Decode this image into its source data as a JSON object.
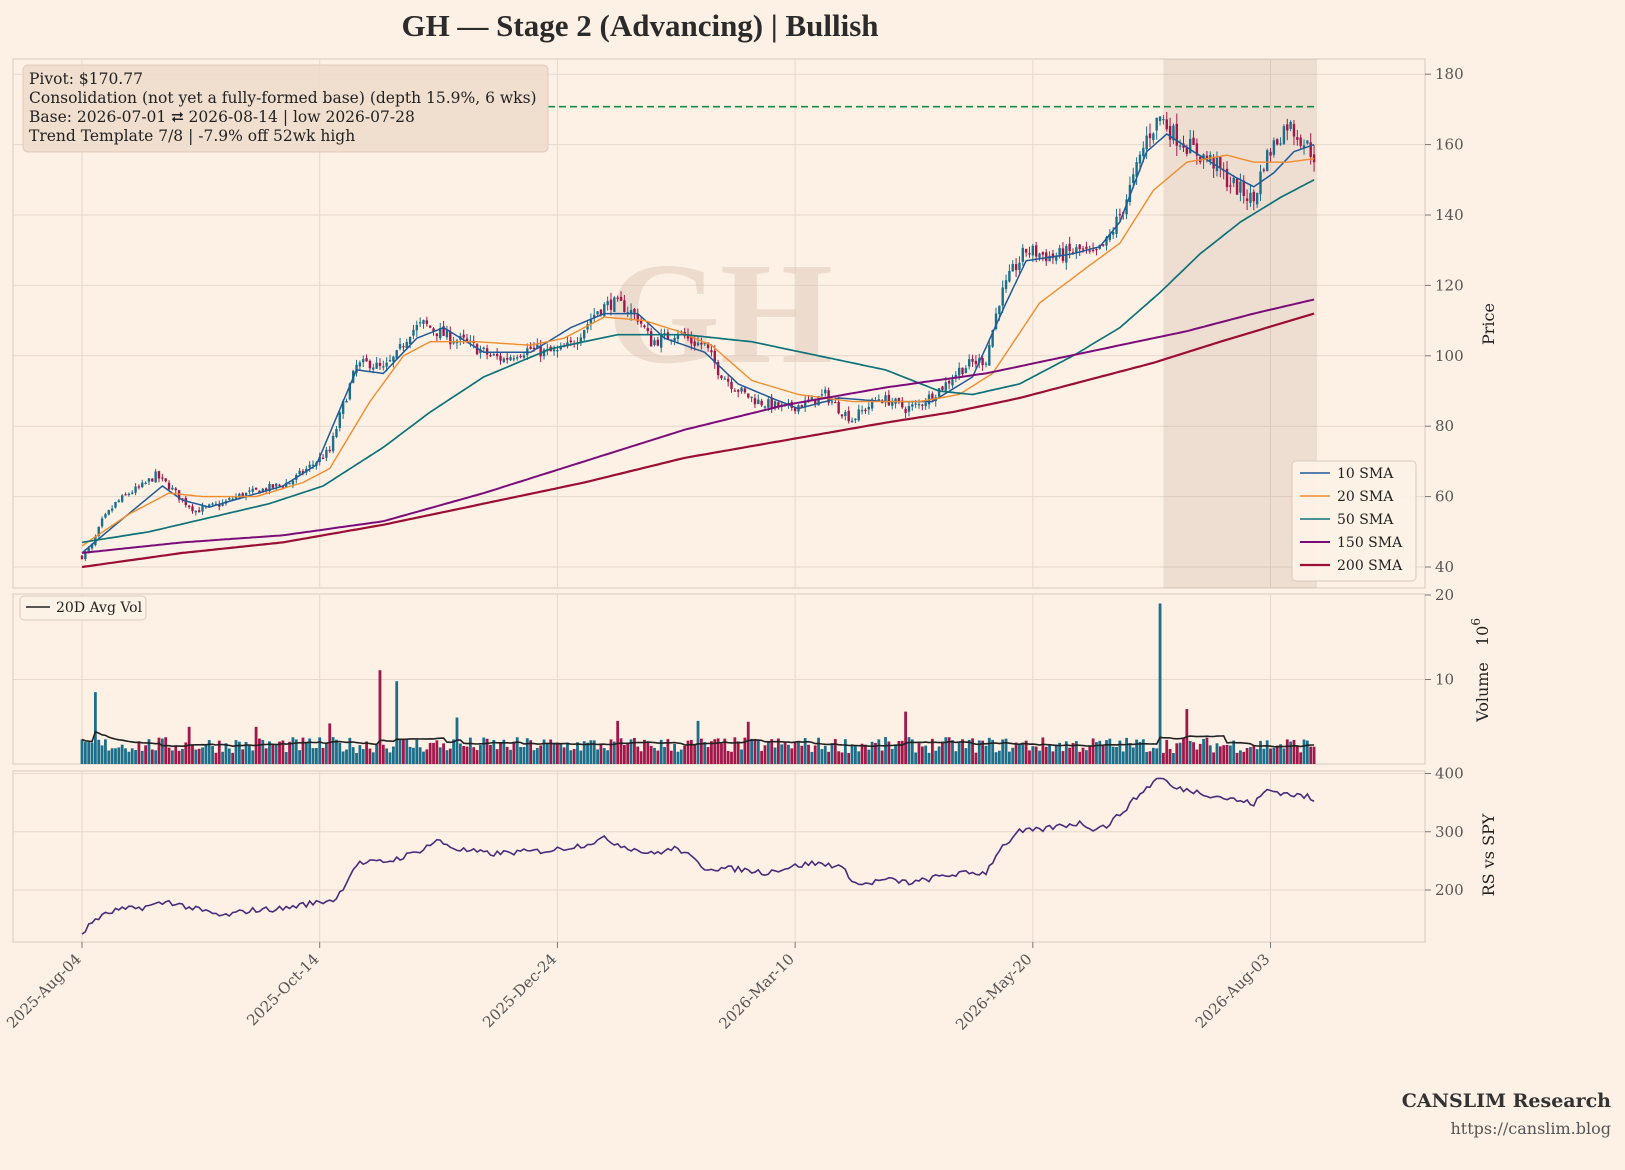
{
  "title": "GH  —  Stage 2 (Advancing)  |  Bullish",
  "watermark": "GH",
  "info_box": [
    "Pivot: $170.77",
    "Consolidation (not yet a fully-formed base)  (depth 15.9%, 6 wks)",
    "Base: 2026-07-01 ⮂ 2026-08-14  |  low 2026-07-28",
    "Trend Template 7/8  |  -7.9% off 52wk high"
  ],
  "branding": {
    "name": "CANSLIM Research",
    "url": "https://canslim.blog"
  },
  "colors": {
    "background": "#fdf1e6",
    "up": "#1b6f8a",
    "down": "#a0174a",
    "sma10": "#1f5a99",
    "sma20": "#f28c2b",
    "sma50": "#0e7278",
    "sma150": "#7b0d7a",
    "sma200": "#9b0f35",
    "pivot": "#1a8a4a",
    "rs": "#4b2b7a",
    "avgvol": "#222222",
    "base_shade": "#ead9cc"
  },
  "chart_data": {
    "type": "candlestick",
    "x_ticks": [
      "2025-Aug-04",
      "2025-Oct-14",
      "2025-Dec-24",
      "2026-Mar-10",
      "2026-May-20",
      "2026-Aug-03"
    ],
    "price_panel": {
      "ylabel": "Price",
      "ylim": [
        37,
        184
      ],
      "yticks": [
        40,
        60,
        80,
        100,
        120,
        140,
        160,
        180
      ],
      "pivot": 170.77,
      "base_shade": {
        "start": "2026-07-01",
        "end": "2026-08-14"
      },
      "close_keypoints": [
        [
          0,
          43
        ],
        [
          3,
          46
        ],
        [
          6,
          53
        ],
        [
          10,
          58
        ],
        [
          14,
          61
        ],
        [
          18,
          63
        ],
        [
          22,
          66
        ],
        [
          26,
          63
        ],
        [
          30,
          59
        ],
        [
          34,
          56
        ],
        [
          38,
          57
        ],
        [
          42,
          58
        ],
        [
          46,
          60
        ],
        [
          50,
          61
        ],
        [
          54,
          62
        ],
        [
          58,
          63
        ],
        [
          62,
          64
        ],
        [
          66,
          67
        ],
        [
          70,
          70
        ],
        [
          74,
          73
        ],
        [
          78,
          86
        ],
        [
          82,
          97
        ],
        [
          86,
          98
        ],
        [
          90,
          96
        ],
        [
          94,
          100
        ],
        [
          98,
          107
        ],
        [
          102,
          109
        ],
        [
          106,
          107
        ],
        [
          110,
          105
        ],
        [
          114,
          104
        ],
        [
          118,
          102
        ],
        [
          122,
          100
        ],
        [
          126,
          99
        ],
        [
          130,
          101
        ],
        [
          134,
          102
        ],
        [
          138,
          101
        ],
        [
          142,
          101
        ],
        [
          146,
          103
        ],
        [
          150,
          108
        ],
        [
          154,
          113
        ],
        [
          158,
          115
        ],
        [
          162,
          114
        ],
        [
          166,
          111
        ],
        [
          170,
          104
        ],
        [
          174,
          105
        ],
        [
          178,
          107
        ],
        [
          182,
          104
        ],
        [
          186,
          103
        ],
        [
          190,
          96
        ],
        [
          194,
          92
        ],
        [
          198,
          89
        ],
        [
          202,
          87
        ],
        [
          206,
          86
        ],
        [
          210,
          85
        ],
        [
          214,
          86
        ],
        [
          218,
          87
        ],
        [
          222,
          89
        ],
        [
          226,
          85
        ],
        [
          230,
          82
        ],
        [
          234,
          85
        ],
        [
          238,
          88
        ],
        [
          242,
          87
        ],
        [
          246,
          85
        ],
        [
          250,
          86
        ],
        [
          254,
          89
        ],
        [
          258,
          92
        ],
        [
          262,
          96
        ],
        [
          266,
          98
        ],
        [
          270,
          99
        ],
        [
          274,
          116
        ],
        [
          278,
          124
        ],
        [
          282,
          130
        ],
        [
          286,
          129
        ],
        [
          290,
          128
        ],
        [
          294,
          129
        ],
        [
          298,
          130
        ],
        [
          302,
          128
        ],
        [
          306,
          132
        ],
        [
          310,
          140
        ],
        [
          314,
          150
        ],
        [
          318,
          162
        ],
        [
          322,
          168
        ],
        [
          326,
          163
        ],
        [
          330,
          160
        ],
        [
          334,
          157
        ],
        [
          338,
          155
        ],
        [
          342,
          150
        ],
        [
          346,
          147
        ],
        [
          350,
          144
        ],
        [
          353,
          155
        ],
        [
          356,
          160
        ],
        [
          360,
          166
        ],
        [
          364,
          162
        ],
        [
          368,
          157
        ]
      ],
      "sma_keypoints": {
        "sma10": [
          [
            0,
            44
          ],
          [
            10,
            52
          ],
          [
            24,
            63
          ],
          [
            30,
            59
          ],
          [
            38,
            57
          ],
          [
            60,
            63
          ],
          [
            70,
            69
          ],
          [
            82,
            96
          ],
          [
            90,
            95
          ],
          [
            100,
            105
          ],
          [
            108,
            108
          ],
          [
            120,
            101
          ],
          [
            134,
            101
          ],
          [
            146,
            108
          ],
          [
            156,
            112
          ],
          [
            166,
            112
          ],
          [
            174,
            105
          ],
          [
            186,
            101
          ],
          [
            196,
            92
          ],
          [
            206,
            88
          ],
          [
            214,
            85
          ],
          [
            226,
            88
          ],
          [
            240,
            87
          ],
          [
            254,
            87
          ],
          [
            266,
            94
          ],
          [
            276,
            115
          ],
          [
            282,
            127
          ],
          [
            296,
            129
          ],
          [
            304,
            131
          ],
          [
            310,
            138
          ],
          [
            318,
            158
          ],
          [
            324,
            163
          ],
          [
            332,
            158
          ],
          [
            344,
            151
          ],
          [
            350,
            148
          ],
          [
            356,
            152
          ],
          [
            362,
            158
          ],
          [
            368,
            160
          ]
        ],
        "sma20": [
          [
            0,
            46
          ],
          [
            14,
            55
          ],
          [
            26,
            61
          ],
          [
            36,
            60
          ],
          [
            52,
            60
          ],
          [
            66,
            64
          ],
          [
            74,
            68
          ],
          [
            86,
            87
          ],
          [
            96,
            100
          ],
          [
            104,
            104
          ],
          [
            118,
            104
          ],
          [
            134,
            103
          ],
          [
            144,
            105
          ],
          [
            156,
            111
          ],
          [
            168,
            110
          ],
          [
            178,
            107
          ],
          [
            188,
            103
          ],
          [
            200,
            93
          ],
          [
            214,
            89
          ],
          [
            230,
            87
          ],
          [
            250,
            87
          ],
          [
            262,
            89
          ],
          [
            272,
            95
          ],
          [
            286,
            115
          ],
          [
            300,
            125
          ],
          [
            310,
            132
          ],
          [
            320,
            147
          ],
          [
            330,
            155
          ],
          [
            342,
            157
          ],
          [
            350,
            155
          ],
          [
            360,
            155
          ],
          [
            368,
            156
          ]
        ],
        "sma50": [
          [
            0,
            47
          ],
          [
            20,
            50
          ],
          [
            38,
            54
          ],
          [
            56,
            58
          ],
          [
            72,
            63
          ],
          [
            90,
            74
          ],
          [
            104,
            84
          ],
          [
            120,
            94
          ],
          [
            140,
            102
          ],
          [
            160,
            106
          ],
          [
            180,
            106
          ],
          [
            200,
            104
          ],
          [
            220,
            100
          ],
          [
            240,
            96
          ],
          [
            256,
            90
          ],
          [
            266,
            89
          ],
          [
            280,
            92
          ],
          [
            296,
            100
          ],
          [
            310,
            108
          ],
          [
            322,
            118
          ],
          [
            334,
            129
          ],
          [
            346,
            138
          ],
          [
            358,
            145
          ],
          [
            368,
            150
          ]
        ],
        "sma150": [
          [
            0,
            44
          ],
          [
            30,
            47
          ],
          [
            60,
            49
          ],
          [
            90,
            53
          ],
          [
            120,
            61
          ],
          [
            150,
            70
          ],
          [
            180,
            79
          ],
          [
            210,
            86
          ],
          [
            240,
            91
          ],
          [
            270,
            95
          ],
          [
            290,
            99
          ],
          [
            310,
            103
          ],
          [
            330,
            107
          ],
          [
            350,
            112
          ],
          [
            368,
            116
          ]
        ],
        "sma200": [
          [
            0,
            40
          ],
          [
            30,
            44
          ],
          [
            60,
            47
          ],
          [
            90,
            52
          ],
          [
            120,
            58
          ],
          [
            150,
            64
          ],
          [
            180,
            71
          ],
          [
            210,
            76
          ],
          [
            240,
            81
          ],
          [
            260,
            84
          ],
          [
            280,
            88
          ],
          [
            300,
            93
          ],
          [
            320,
            98
          ],
          [
            340,
            104
          ],
          [
            368,
            112
          ]
        ]
      }
    },
    "volume_panel": {
      "ylabel": "Volume",
      "unit": "10^6",
      "ylim": [
        0,
        20
      ],
      "yticks": [
        10,
        20
      ],
      "legend": "20D Avg Vol",
      "spikes": [
        [
          4,
          8.5
        ],
        [
          32,
          4.4
        ],
        [
          52,
          4.4
        ],
        [
          74,
          4.8
        ],
        [
          89,
          11.1
        ],
        [
          94,
          9.8
        ],
        [
          112,
          5.5
        ],
        [
          160,
          5.1
        ],
        [
          184,
          5.1
        ],
        [
          199,
          5.0
        ],
        [
          246,
          6.2
        ],
        [
          322,
          19.0
        ],
        [
          330,
          6.5
        ]
      ]
    },
    "rs_panel": {
      "ylabel": "RS vs SPY",
      "ylim": [
        115,
        415
      ],
      "yticks": [
        200,
        300,
        400
      ],
      "keypoints": [
        [
          0,
          125
        ],
        [
          4,
          150
        ],
        [
          10,
          165
        ],
        [
          18,
          170
        ],
        [
          26,
          180
        ],
        [
          32,
          170
        ],
        [
          42,
          155
        ],
        [
          50,
          165
        ],
        [
          60,
          168
        ],
        [
          66,
          175
        ],
        [
          72,
          180
        ],
        [
          76,
          185
        ],
        [
          82,
          245
        ],
        [
          92,
          250
        ],
        [
          100,
          265
        ],
        [
          106,
          285
        ],
        [
          112,
          270
        ],
        [
          122,
          262
        ],
        [
          130,
          265
        ],
        [
          140,
          268
        ],
        [
          150,
          278
        ],
        [
          156,
          288
        ],
        [
          162,
          275
        ],
        [
          170,
          262
        ],
        [
          178,
          272
        ],
        [
          186,
          238
        ],
        [
          196,
          236
        ],
        [
          204,
          230
        ],
        [
          212,
          240
        ],
        [
          218,
          246
        ],
        [
          226,
          242
        ],
        [
          232,
          208
        ],
        [
          240,
          218
        ],
        [
          248,
          212
        ],
        [
          256,
          223
        ],
        [
          262,
          228
        ],
        [
          270,
          230
        ],
        [
          274,
          270
        ],
        [
          280,
          300
        ],
        [
          286,
          303
        ],
        [
          292,
          310
        ],
        [
          298,
          315
        ],
        [
          302,
          306
        ],
        [
          306,
          310
        ],
        [
          310,
          330
        ],
        [
          316,
          365
        ],
        [
          322,
          395
        ],
        [
          326,
          375
        ],
        [
          332,
          370
        ],
        [
          338,
          362
        ],
        [
          344,
          355
        ],
        [
          350,
          348
        ],
        [
          354,
          372
        ],
        [
          360,
          365
        ],
        [
          366,
          360
        ],
        [
          368,
          352
        ]
      ]
    }
  }
}
